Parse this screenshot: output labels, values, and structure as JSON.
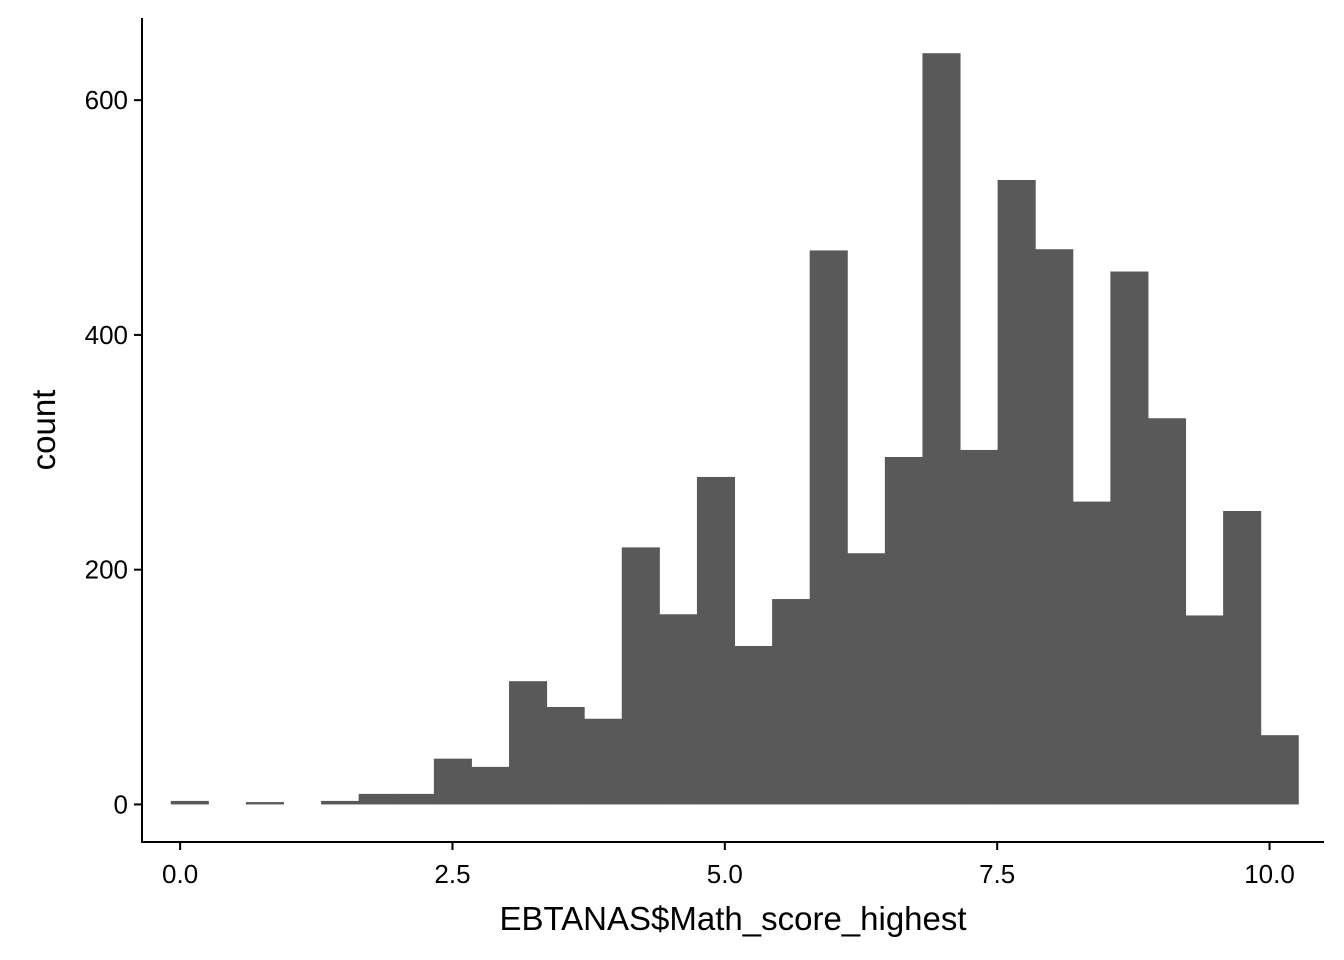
{
  "chart_data": {
    "type": "bar",
    "subtype": "histogram",
    "xlabel": "EBTANAS$Math_score_highest",
    "ylabel": "count",
    "xlim": [
      -0.35,
      10.5
    ],
    "ylim": [
      -32,
      670
    ],
    "x_ticks": [
      0.0,
      2.5,
      5.0,
      7.5,
      10.0
    ],
    "x_tick_labels": [
      "0.0",
      "2.5",
      "5.0",
      "7.5",
      "10.0"
    ],
    "y_ticks": [
      0,
      200,
      400,
      600
    ],
    "y_tick_labels": [
      "0",
      "200",
      "400",
      "600"
    ],
    "bin_width": 0.345,
    "bins": [
      {
        "x0": -0.086,
        "x1": 0.259,
        "count": 3
      },
      {
        "x0": 0.259,
        "x1": 0.604,
        "count": 0
      },
      {
        "x0": 0.604,
        "x1": 0.949,
        "count": 2
      },
      {
        "x0": 0.949,
        "x1": 1.294,
        "count": 0
      },
      {
        "x0": 1.294,
        "x1": 1.639,
        "count": 3
      },
      {
        "x0": 1.639,
        "x1": 1.984,
        "count": 9
      },
      {
        "x0": 1.984,
        "x1": 2.329,
        "count": 9
      },
      {
        "x0": 2.329,
        "x1": 2.674,
        "count": 39
      },
      {
        "x0": 2.674,
        "x1": 3.019,
        "count": 32
      },
      {
        "x0": 3.019,
        "x1": 3.364,
        "count": 105
      },
      {
        "x0": 3.364,
        "x1": 3.709,
        "count": 83
      },
      {
        "x0": 3.709,
        "x1": 4.054,
        "count": 73
      },
      {
        "x0": 4.054,
        "x1": 4.399,
        "count": 219
      },
      {
        "x0": 4.399,
        "x1": 4.744,
        "count": 162
      },
      {
        "x0": 4.744,
        "x1": 5.089,
        "count": 279
      },
      {
        "x0": 5.089,
        "x1": 5.434,
        "count": 135
      },
      {
        "x0": 5.434,
        "x1": 5.779,
        "count": 175
      },
      {
        "x0": 5.779,
        "x1": 6.124,
        "count": 472
      },
      {
        "x0": 6.124,
        "x1": 6.469,
        "count": 214
      },
      {
        "x0": 6.469,
        "x1": 6.814,
        "count": 296
      },
      {
        "x0": 6.814,
        "x1": 7.159,
        "count": 640
      },
      {
        "x0": 7.159,
        "x1": 7.504,
        "count": 302
      },
      {
        "x0": 7.504,
        "x1": 7.849,
        "count": 532
      },
      {
        "x0": 7.849,
        "x1": 8.194,
        "count": 473
      },
      {
        "x0": 8.194,
        "x1": 8.539,
        "count": 258
      },
      {
        "x0": 8.539,
        "x1": 8.884,
        "count": 454
      },
      {
        "x0": 8.884,
        "x1": 9.229,
        "count": 329
      },
      {
        "x0": 9.229,
        "x1": 9.574,
        "count": 161
      },
      {
        "x0": 9.574,
        "x1": 9.919,
        "count": 250
      },
      {
        "x0": 9.919,
        "x1": 10.264,
        "count": 59
      }
    ],
    "bar_color": "#595959",
    "grid": false,
    "legend": "none"
  }
}
